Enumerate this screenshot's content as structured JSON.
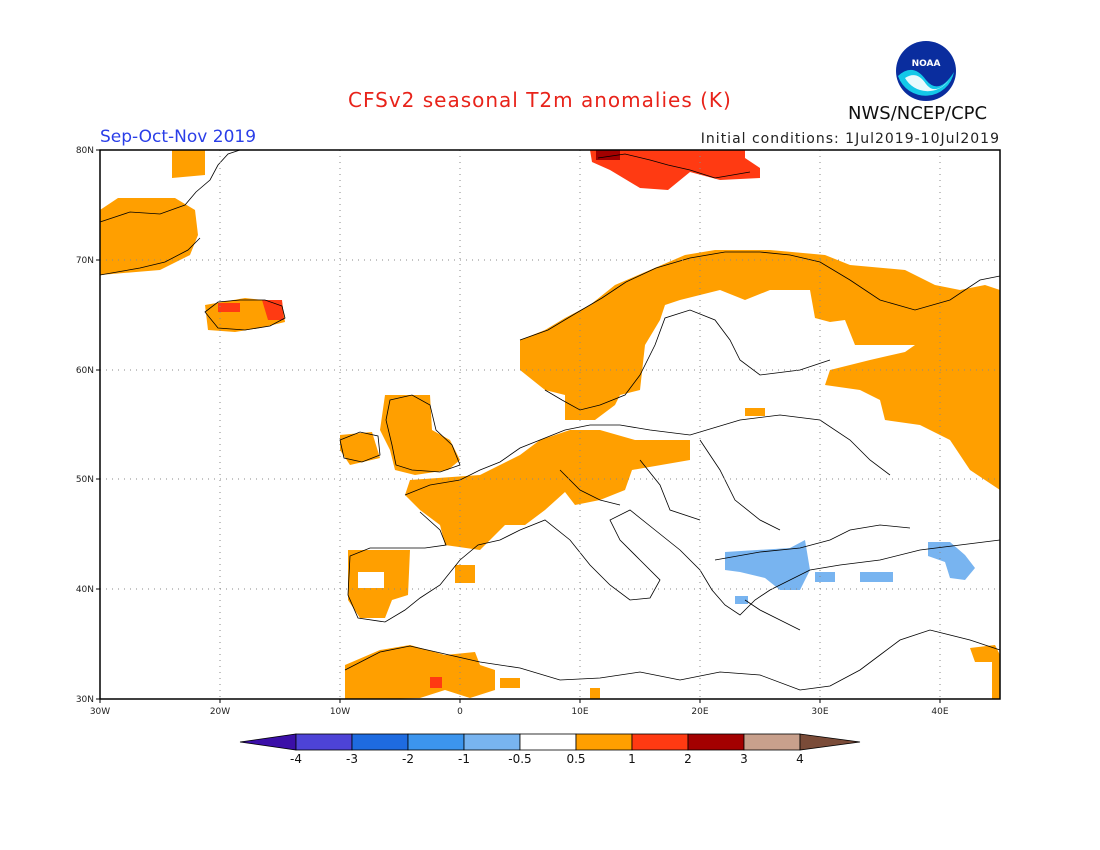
{
  "header": {
    "title": "CFSv2 seasonal T2m anomalies (K)",
    "season": "Sep-Oct-Nov 2019",
    "initial_conditions": "Initial conditions: 1Jul2019-10Jul2019",
    "agency": "NWS/NCEP/CPC",
    "logo_text": "NOAA"
  },
  "map": {
    "projection": "lat-lon",
    "lon_range": [
      -30,
      45
    ],
    "lat_range": [
      30,
      80
    ],
    "lat_labels": [
      "80N",
      "70N",
      "60N",
      "50N",
      "40N",
      "30N"
    ],
    "lon_labels": [
      "30W",
      "20W",
      "10W",
      "0",
      "10E",
      "20E",
      "30E",
      "40E"
    ],
    "colors": {
      "warm_0_5_1": "#ff9f00",
      "warm_1_2": "#ff3a12",
      "warm_2_3": "#a30000",
      "cool_m1_m0_5": "#78b4f0"
    }
  },
  "colorbar": {
    "ticks": [
      "-4",
      "-3",
      "-2",
      "-1",
      "-0.5",
      "0.5",
      "1",
      "2",
      "3",
      "4"
    ],
    "colors": [
      "#3b0fa8",
      "#4d43d6",
      "#1e6be0",
      "#3c95ee",
      "#78b4f0",
      "#ffffff",
      "#ff9f00",
      "#ff3a12",
      "#a30000",
      "#c8a08c",
      "#7a4b38"
    ]
  }
}
